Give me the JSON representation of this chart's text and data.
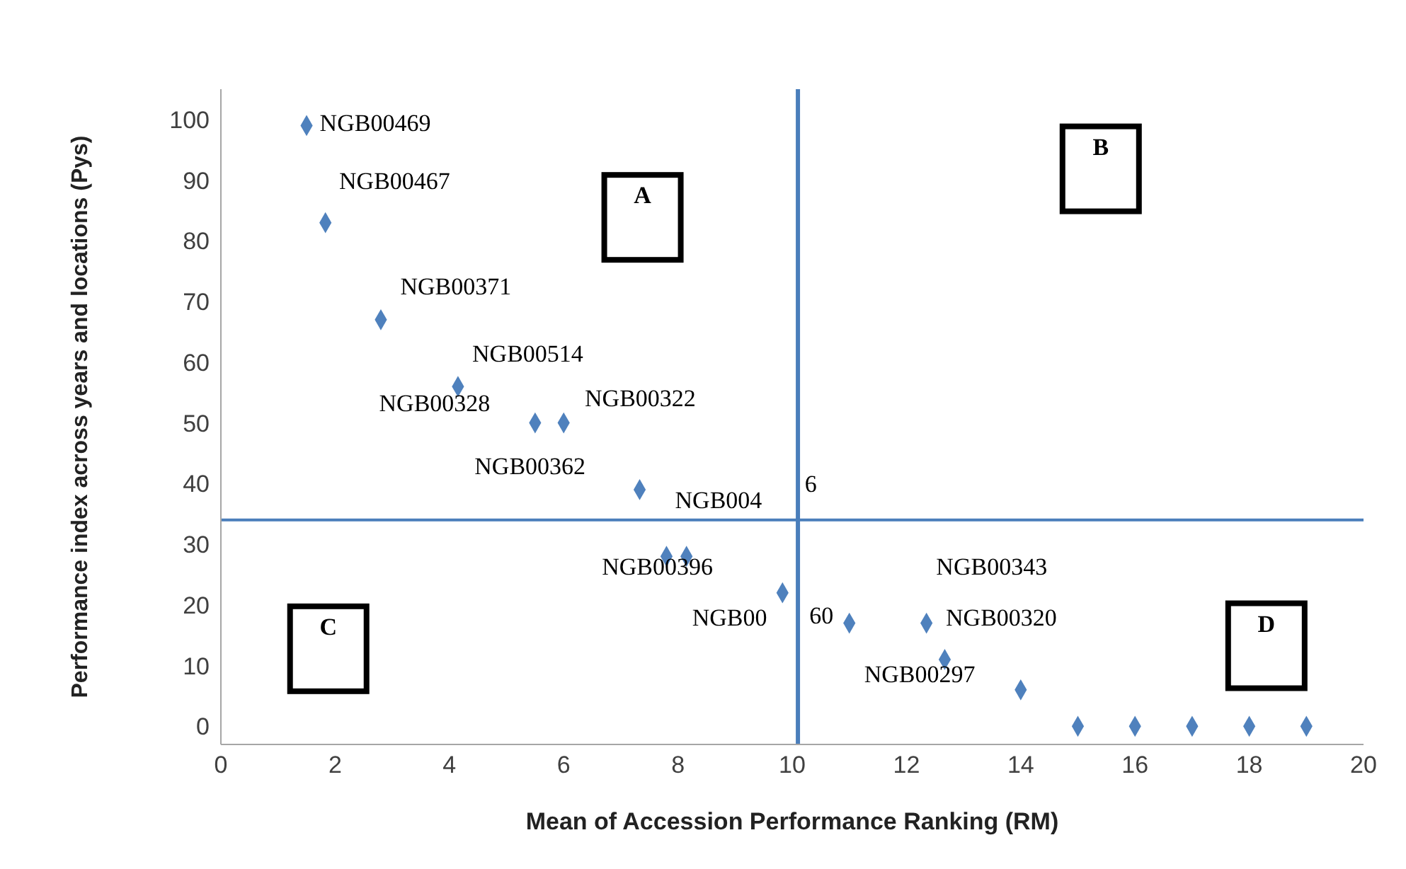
{
  "chart_data": {
    "type": "scatter",
    "xlabel": "Mean of Accession Performance Ranking (RM)",
    "ylabel": "Performance index across years and locations (Pys)",
    "x": [
      1.5,
      1.83,
      2.8,
      4.15,
      5.5,
      6.0,
      7.33,
      7.8,
      8.15,
      9.83,
      11.0,
      12.35,
      12.67,
      14.0,
      15,
      16,
      17,
      18,
      19
    ],
    "series": [
      {
        "color": "#4f81bd",
        "values": [
          99,
          83,
          67,
          56,
          50,
          50,
          39,
          28,
          28,
          22,
          17,
          17,
          11,
          6,
          0,
          0,
          0,
          0,
          0
        ]
      }
    ],
    "xlim": [
      0,
      20
    ],
    "xticks": [
      0,
      2,
      4,
      6,
      8,
      10,
      12,
      14,
      16,
      18,
      20
    ],
    "ylim": [
      -3,
      105
    ],
    "yticks": [
      0,
      10,
      20,
      30,
      40,
      50,
      60,
      70,
      80,
      90,
      100
    ],
    "grid": false,
    "marker": "diamond",
    "ref_lines": [
      {
        "axis": "x",
        "value": 10.1,
        "color": "#4a7ebb"
      },
      {
        "axis": "y",
        "value": 34,
        "color": "#4a7ebb"
      }
    ],
    "annotations": [
      "A",
      "B",
      "C",
      "D",
      "NGB00469",
      "NGB00467",
      "NGB00371",
      "NGB00514",
      "NGB00328",
      "NGB00322",
      "NGB00362",
      "NGB004",
      "6",
      "NGB00396",
      "NGB00",
      "60",
      "NGB00343",
      "NGB00320",
      "NGB00297"
    ]
  }
}
